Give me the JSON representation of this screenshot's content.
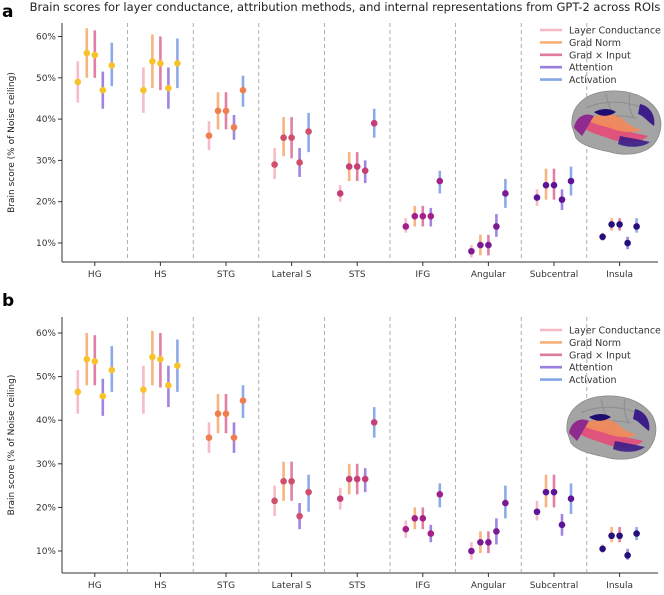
{
  "figure_title": "Brain scores for layer conductance, attribution methods, and internal representations from GPT-2 across ROIs",
  "colors": {
    "Layer Conductance": "#f6b8c4",
    "Grad Norm": "#f5b07a",
    "Grad × Input": "#e07aa0",
    "Attention": "#9a7ee0",
    "Activation": "#86a6e6",
    "roi_points": [
      "#f8c22b",
      "#f8c22b",
      "#ef7f4f",
      "#d04f6b",
      "#c63e76",
      "#a41f8a",
      "#7b1a94",
      "#5b1497",
      "#25107a"
    ],
    "brain_gray": "#a4a4a4",
    "brain_highlight": [
      "#e34f7a",
      "#f08a5d",
      "#8f2a8e",
      "#3c1d8a",
      "#1f0c70"
    ]
  },
  "chart_data": [
    {
      "panel": "a",
      "type": "scatter",
      "ylabel": "Brain score (% of Noise ceiling)",
      "ylim": [
        5,
        63
      ],
      "yticks": [
        "10%",
        "20%",
        "30%",
        "40%",
        "50%",
        "60%"
      ],
      "categories": [
        "HG",
        "HS",
        "STG",
        "Lateral S",
        "STS",
        "IFG",
        "Angular",
        "Subcentral",
        "Insula"
      ],
      "legend": [
        "Layer Conductance",
        "Grad Norm",
        "Grad × Input",
        "Attention",
        "Activation"
      ],
      "series": [
        {
          "name": "Layer Conductance",
          "values": [
            49,
            47,
            36,
            29,
            22,
            14,
            8,
            21,
            11.5
          ],
          "lo": [
            44,
            41.5,
            32.5,
            25.5,
            20,
            12.5,
            6.5,
            19,
            10.5
          ],
          "hi": [
            54,
            52.5,
            39.5,
            33,
            24,
            16,
            9.5,
            23,
            12.5
          ]
        },
        {
          "name": "Grad Norm",
          "values": [
            56,
            54,
            42,
            35.5,
            28.5,
            16.5,
            9.5,
            24,
            14.5
          ],
          "lo": [
            50,
            47.5,
            37.5,
            31,
            25,
            14,
            7,
            20.5,
            13
          ],
          "hi": [
            62,
            60.5,
            46.5,
            40.5,
            32,
            19,
            12,
            28,
            16
          ]
        },
        {
          "name": "Grad × Input",
          "values": [
            55.5,
            53.5,
            42,
            35.5,
            28.5,
            16.5,
            9.5,
            24,
            14.5
          ],
          "lo": [
            50,
            47,
            37.5,
            30.5,
            25,
            14,
            7,
            20.5,
            13
          ],
          "hi": [
            61.5,
            60,
            46.5,
            40.5,
            32,
            19,
            12,
            28,
            16
          ]
        },
        {
          "name": "Attention",
          "values": [
            47,
            47.5,
            38,
            29.5,
            27.5,
            16.5,
            14,
            20.5,
            10
          ],
          "lo": [
            42.5,
            42.5,
            35,
            26,
            24.5,
            14,
            11.5,
            18,
            8.5
          ],
          "hi": [
            51.5,
            52.5,
            41,
            33,
            30,
            18.5,
            17,
            23,
            11.5
          ]
        },
        {
          "name": "Activation",
          "values": [
            53,
            53.5,
            47,
            37,
            39,
            25,
            22,
            25,
            14
          ],
          "lo": [
            48,
            47.5,
            43,
            32,
            35.5,
            22,
            18.5,
            21.5,
            12.5
          ],
          "hi": [
            58.5,
            59.5,
            50.5,
            41.5,
            42.5,
            27.5,
            25.5,
            28.5,
            16
          ]
        }
      ]
    },
    {
      "panel": "b",
      "type": "scatter",
      "ylabel": "Brain score (% of Noise ceiling)",
      "ylim": [
        5,
        63
      ],
      "yticks": [
        "10%",
        "20%",
        "30%",
        "40%",
        "50%",
        "60%"
      ],
      "categories": [
        "HG",
        "HS",
        "STG",
        "Lateral S",
        "STS",
        "IFG",
        "Angular",
        "Subcentral",
        "Insula"
      ],
      "legend": [
        "Layer Conductance",
        "Grad Norm",
        "Grad × Input",
        "Attention",
        "Activation"
      ],
      "series": [
        {
          "name": "Layer Conductance",
          "values": [
            46.5,
            47,
            36,
            21.5,
            22,
            15,
            10,
            19,
            10.5
          ],
          "lo": [
            41.5,
            41.5,
            32.5,
            18,
            19.5,
            13,
            8,
            17,
            9.5
          ],
          "hi": [
            51.5,
            52.5,
            39.5,
            25,
            24.5,
            17,
            12,
            21.5,
            11.5
          ]
        },
        {
          "name": "Grad Norm",
          "values": [
            54,
            54.5,
            41.5,
            26,
            26.5,
            17.5,
            12,
            23.5,
            13.5
          ],
          "lo": [
            48,
            48,
            37,
            21.5,
            23,
            15,
            9.5,
            20,
            12
          ],
          "hi": [
            60,
            60.5,
            46,
            30.5,
            30,
            20,
            14.5,
            27.5,
            15.5
          ]
        },
        {
          "name": "Grad × Input",
          "values": [
            53.5,
            54,
            41.5,
            26,
            26.5,
            17.5,
            12,
            23.5,
            13.5
          ],
          "lo": [
            48,
            47.5,
            37,
            21.5,
            23,
            15,
            9.5,
            20,
            12
          ],
          "hi": [
            59.5,
            60,
            46,
            30.5,
            30,
            20,
            14.5,
            27.5,
            15.5
          ]
        },
        {
          "name": "Attention",
          "values": [
            45.5,
            48,
            36,
            18,
            26.5,
            14,
            14.5,
            16,
            9
          ],
          "lo": [
            41,
            43,
            32.5,
            15,
            23.5,
            12,
            11.5,
            13.5,
            8
          ],
          "hi": [
            49.5,
            52.5,
            39.5,
            21,
            29,
            16,
            17.5,
            18.5,
            10.5
          ]
        },
        {
          "name": "Activation",
          "values": [
            51.5,
            52.5,
            44.5,
            23.5,
            39.5,
            23,
            21,
            22,
            14
          ],
          "lo": [
            46.5,
            46.5,
            40.5,
            19,
            36,
            20,
            17.5,
            18.5,
            12.5
          ],
          "hi": [
            57,
            58.5,
            48,
            27.5,
            43,
            25.5,
            25,
            25.5,
            15.5
          ]
        }
      ]
    }
  ]
}
